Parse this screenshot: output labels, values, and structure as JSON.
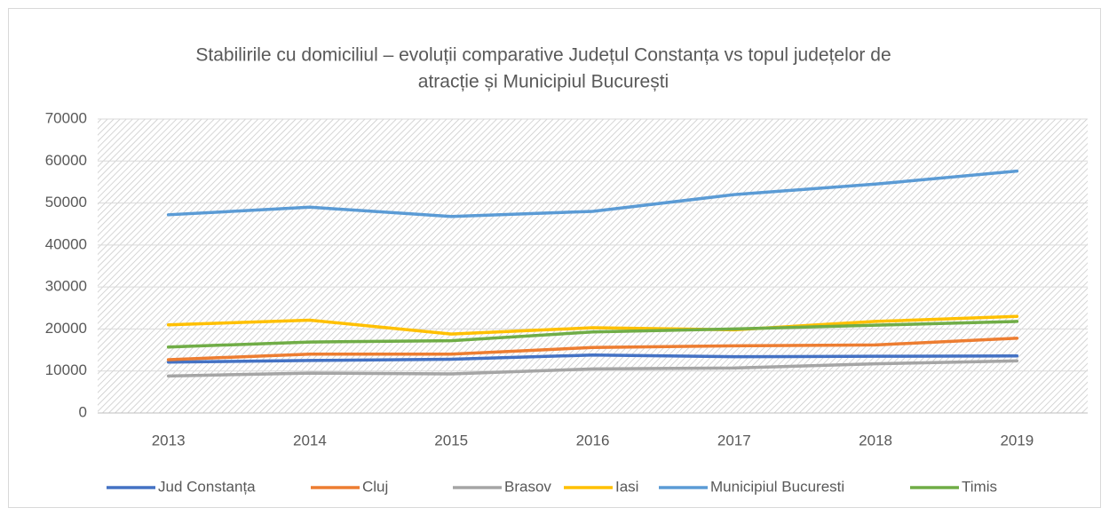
{
  "chart_data": {
    "type": "line",
    "title": [
      "Stabilirile cu domiciliul – evoluții comparative Județul Constanța vs topul județelor de",
      "atracție și Municipiul București"
    ],
    "categories": [
      "2013",
      "2014",
      "2015",
      "2016",
      "2017",
      "2018",
      "2019"
    ],
    "series": [
      {
        "name": "Jud Constanța",
        "color": "#4472c4",
        "values": [
          12100,
          12500,
          12800,
          13800,
          13400,
          13500,
          13600
        ]
      },
      {
        "name": "Cluj",
        "color": "#ed7d31",
        "values": [
          12700,
          14000,
          14000,
          15600,
          16000,
          16200,
          17800
        ]
      },
      {
        "name": "Brasov",
        "color": "#a5a5a5",
        "values": [
          8800,
          9500,
          9300,
          10500,
          10700,
          11700,
          12400
        ]
      },
      {
        "name": "Iasi",
        "color": "#ffc000",
        "values": [
          21000,
          22100,
          18800,
          20300,
          19800,
          21800,
          23000
        ]
      },
      {
        "name": "Municipiul Bucuresti",
        "color": "#5b9bd5",
        "values": [
          47200,
          49000,
          46800,
          48000,
          52000,
          54500,
          57600
        ]
      },
      {
        "name": "Timis",
        "color": "#70ad47",
        "values": [
          15700,
          16900,
          17200,
          19300,
          20000,
          20900,
          21800
        ]
      }
    ],
    "ylim": [
      0,
      70000
    ],
    "yticks": [
      0,
      10000,
      20000,
      30000,
      40000,
      50000,
      60000,
      70000
    ],
    "grid": true,
    "legend": "bottom"
  }
}
